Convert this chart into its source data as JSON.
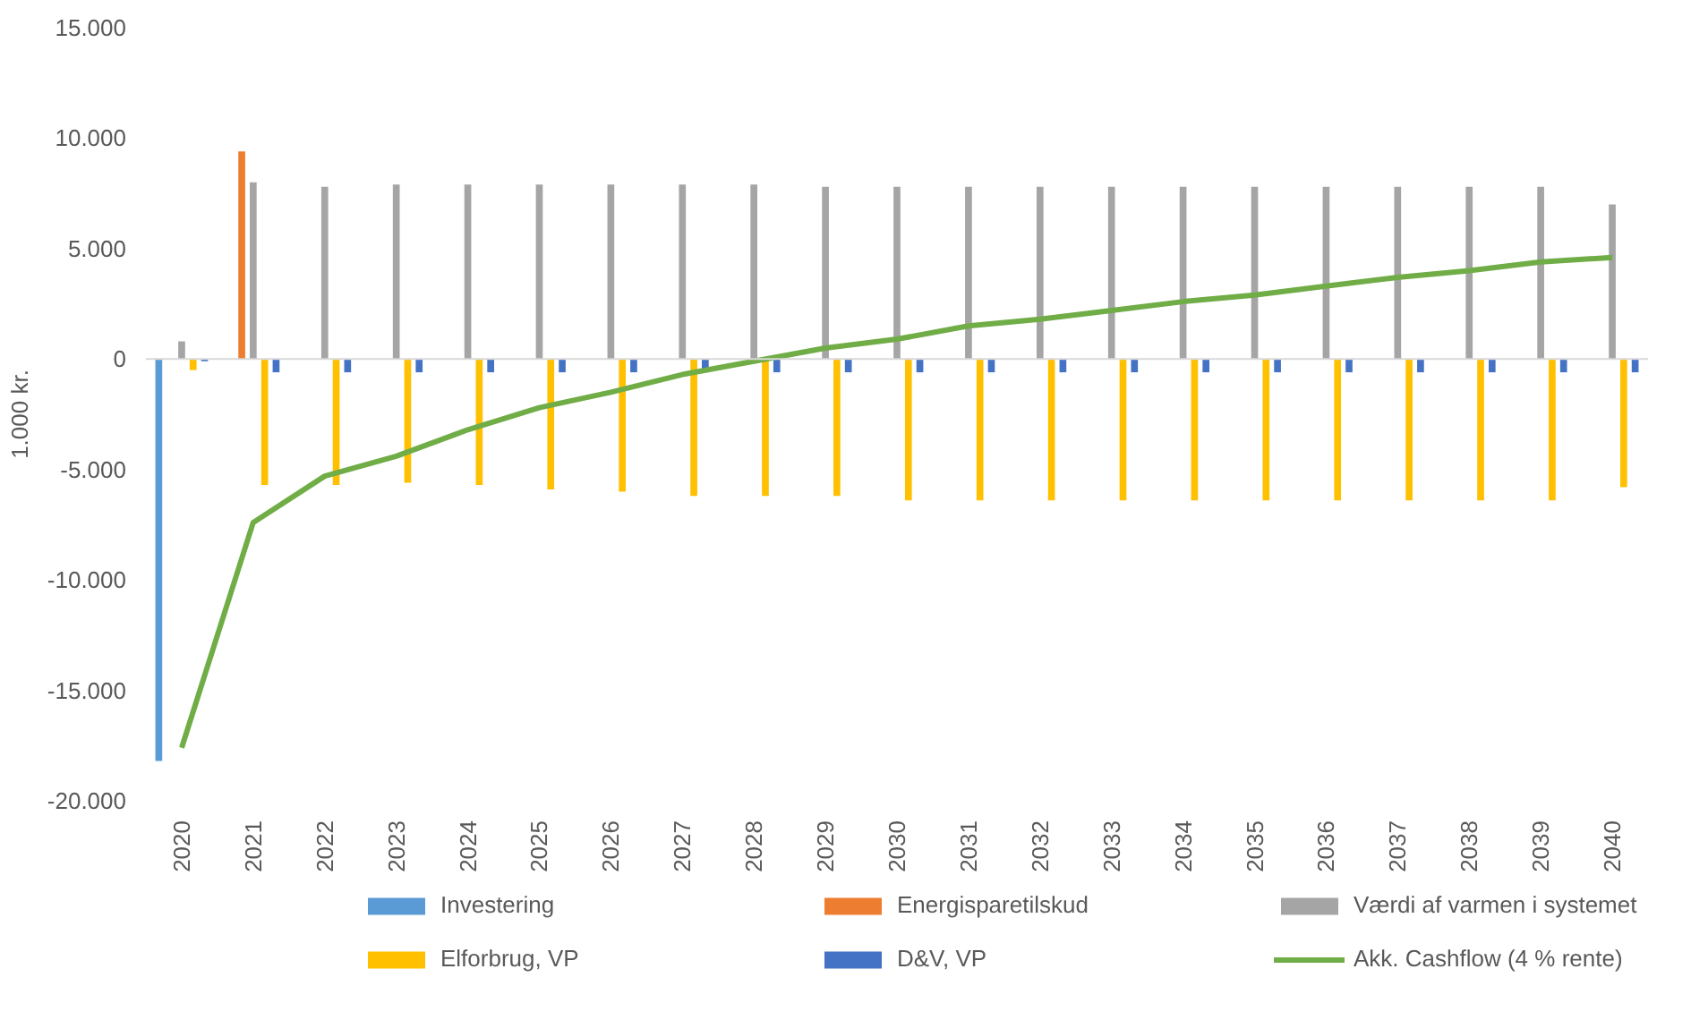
{
  "chart_data": {
    "type": "bar",
    "ylabel": "1.000 kr.",
    "categories": [
      "2020",
      "2021",
      "2022",
      "2023",
      "2024",
      "2025",
      "2026",
      "2027",
      "2028",
      "2029",
      "2030",
      "2031",
      "2032",
      "2033",
      "2034",
      "2035",
      "2036",
      "2037",
      "2038",
      "2039",
      "2040"
    ],
    "series": [
      {
        "name": "Investering",
        "color": "#5b9bd5",
        "values": [
          -18200,
          null,
          null,
          null,
          null,
          null,
          null,
          null,
          null,
          null,
          null,
          null,
          null,
          null,
          null,
          null,
          null,
          null,
          null,
          null,
          null
        ]
      },
      {
        "name": "Energisparetilskud",
        "color": "#ed7d31",
        "values": [
          null,
          9400,
          null,
          null,
          null,
          null,
          null,
          null,
          null,
          null,
          null,
          null,
          null,
          null,
          null,
          null,
          null,
          null,
          null,
          null,
          null
        ]
      },
      {
        "name": "Værdi af varmen i systemet",
        "color": "#a5a5a5",
        "values": [
          800,
          8000,
          7800,
          7900,
          7900,
          7900,
          7900,
          7900,
          7900,
          7800,
          7800,
          7800,
          7800,
          7800,
          7800,
          7800,
          7800,
          7800,
          7800,
          7800,
          7000
        ]
      },
      {
        "name": "Elforbrug, VP",
        "color": "#ffc000",
        "values": [
          -500,
          -5700,
          -5700,
          -5600,
          -5700,
          -5900,
          -6000,
          -6200,
          -6200,
          -6200,
          -6400,
          -6400,
          -6400,
          -6400,
          -6400,
          -6400,
          -6400,
          -6400,
          -6400,
          -6400,
          -5800
        ]
      },
      {
        "name": "D&V, VP",
        "color": "#4472c4",
        "values": [
          -100,
          -600,
          -600,
          -600,
          -600,
          -600,
          -600,
          -600,
          -600,
          -600,
          -600,
          -600,
          -600,
          -600,
          -600,
          -600,
          -600,
          -600,
          -600,
          -600,
          -600
        ]
      },
      {
        "name": "Akk. Cashflow (4 % rente)",
        "type": "line",
        "color": "#70ad47",
        "values": [
          -17600,
          -7400,
          -5300,
          -4400,
          -3200,
          -2200,
          -1500,
          -700,
          -100,
          500,
          900,
          1500,
          1800,
          2200,
          2600,
          2900,
          3300,
          3700,
          4000,
          4400,
          4600
        ]
      }
    ],
    "ylim": [
      -20000,
      15000
    ],
    "yticks": [
      {
        "value": -20000,
        "label": "-20.000"
      },
      {
        "value": -15000,
        "label": "-15.000"
      },
      {
        "value": -10000,
        "label": "-10.000"
      },
      {
        "value": -5000,
        "label": "-5.000"
      },
      {
        "value": 0,
        "label": "0"
      },
      {
        "value": 5000,
        "label": "5.000"
      },
      {
        "value": 10000,
        "label": "10.000"
      },
      {
        "value": 15000,
        "label": "15.000"
      }
    ],
    "legend": "bottom"
  }
}
